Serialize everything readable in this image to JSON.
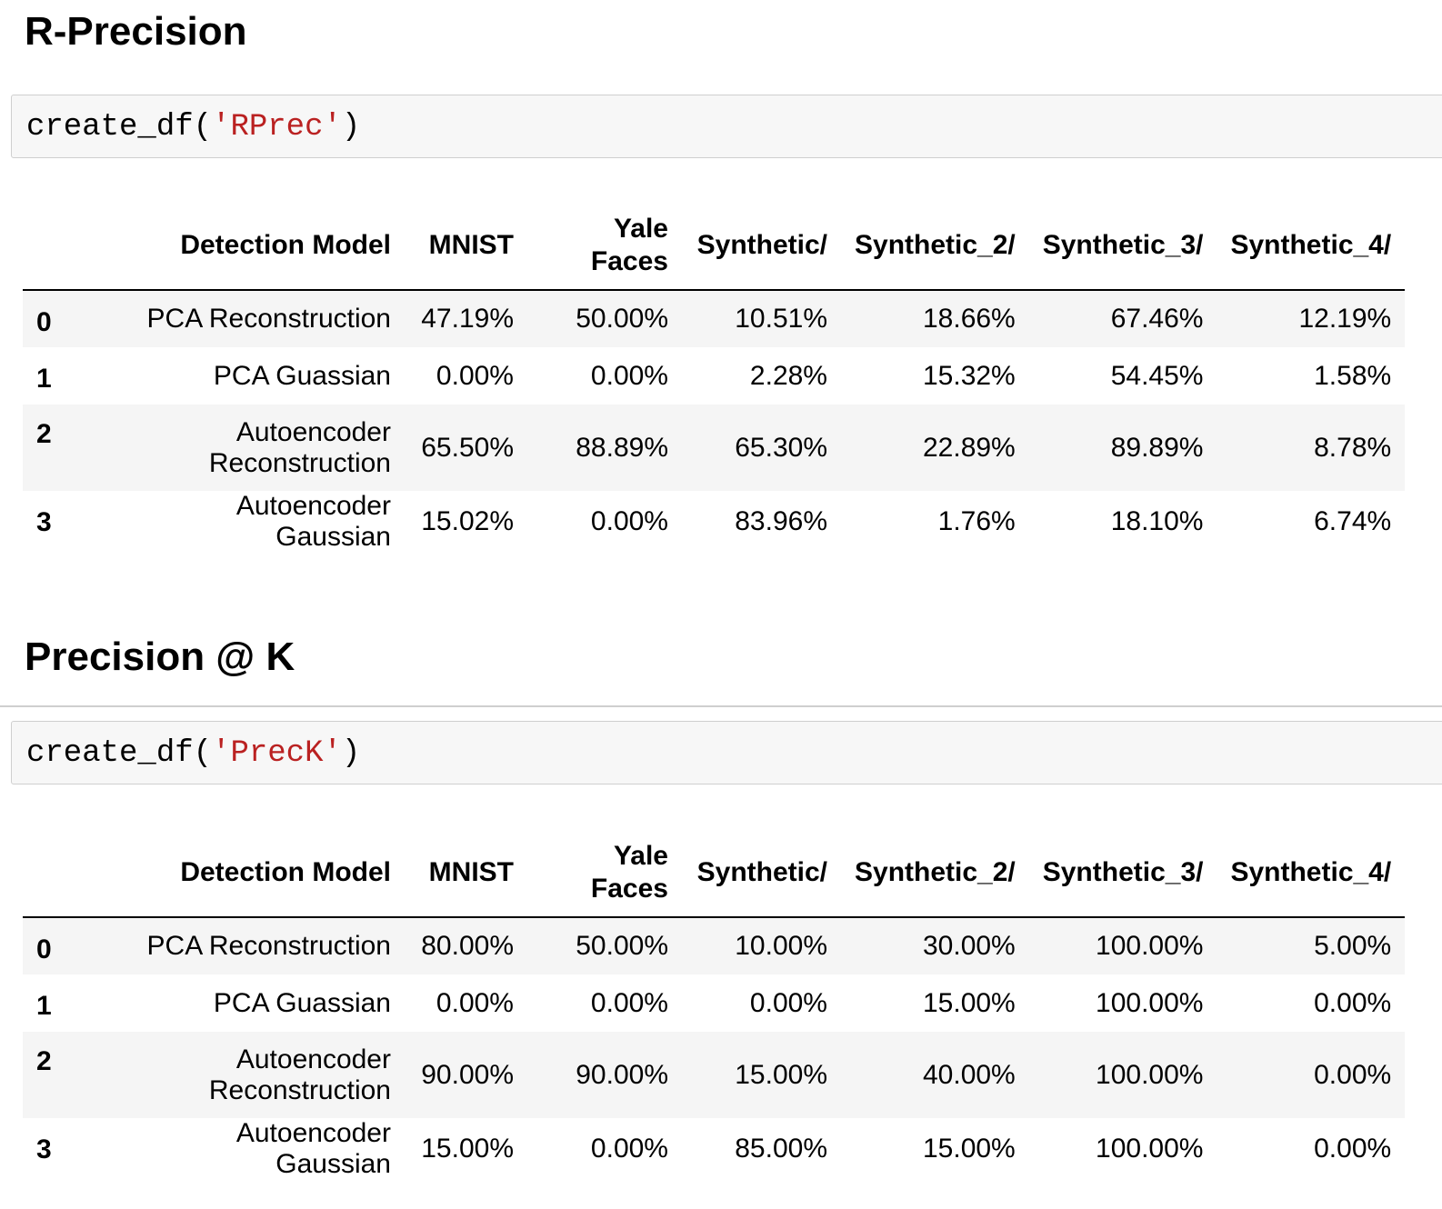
{
  "sections": [
    {
      "heading": "R-Precision",
      "code": {
        "prefix": "create_df(",
        "arg": "'RPrec'",
        "suffix": ")"
      },
      "table": {
        "columns": [
          "",
          "Detection Model",
          "MNIST",
          "Yale Faces",
          "Synthetic/",
          "Synthetic_2/",
          "Synthetic_3/",
          "Synthetic_4/"
        ],
        "rows": [
          [
            "0",
            "PCA Reconstruction",
            "47.19%",
            "50.00%",
            "10.51%",
            "18.66%",
            "67.46%",
            "12.19%"
          ],
          [
            "1",
            "PCA Guassian",
            "0.00%",
            "0.00%",
            "2.28%",
            "15.32%",
            "54.45%",
            "1.58%"
          ],
          [
            "2",
            "Autoencoder Reconstruction",
            "65.50%",
            "88.89%",
            "65.30%",
            "22.89%",
            "89.89%",
            "8.78%"
          ],
          [
            "3",
            "Autoencoder Gaussian",
            "15.02%",
            "0.00%",
            "83.96%",
            "1.76%",
            "18.10%",
            "6.74%"
          ]
        ]
      }
    },
    {
      "heading": "Precision @ K",
      "code": {
        "prefix": "create_df(",
        "arg": "'PrecK'",
        "suffix": ")"
      },
      "table": {
        "columns": [
          "",
          "Detection Model",
          "MNIST",
          "Yale Faces",
          "Synthetic/",
          "Synthetic_2/",
          "Synthetic_3/",
          "Synthetic_4/"
        ],
        "rows": [
          [
            "0",
            "PCA Reconstruction",
            "80.00%",
            "50.00%",
            "10.00%",
            "30.00%",
            "100.00%",
            "5.00%"
          ],
          [
            "1",
            "PCA Guassian",
            "0.00%",
            "0.00%",
            "0.00%",
            "15.00%",
            "100.00%",
            "0.00%"
          ],
          [
            "2",
            "Autoencoder Reconstruction",
            "90.00%",
            "90.00%",
            "15.00%",
            "40.00%",
            "100.00%",
            "0.00%"
          ],
          [
            "3",
            "Autoencoder Gaussian",
            "15.00%",
            "0.00%",
            "85.00%",
            "15.00%",
            "100.00%",
            "0.00%"
          ]
        ]
      }
    }
  ]
}
